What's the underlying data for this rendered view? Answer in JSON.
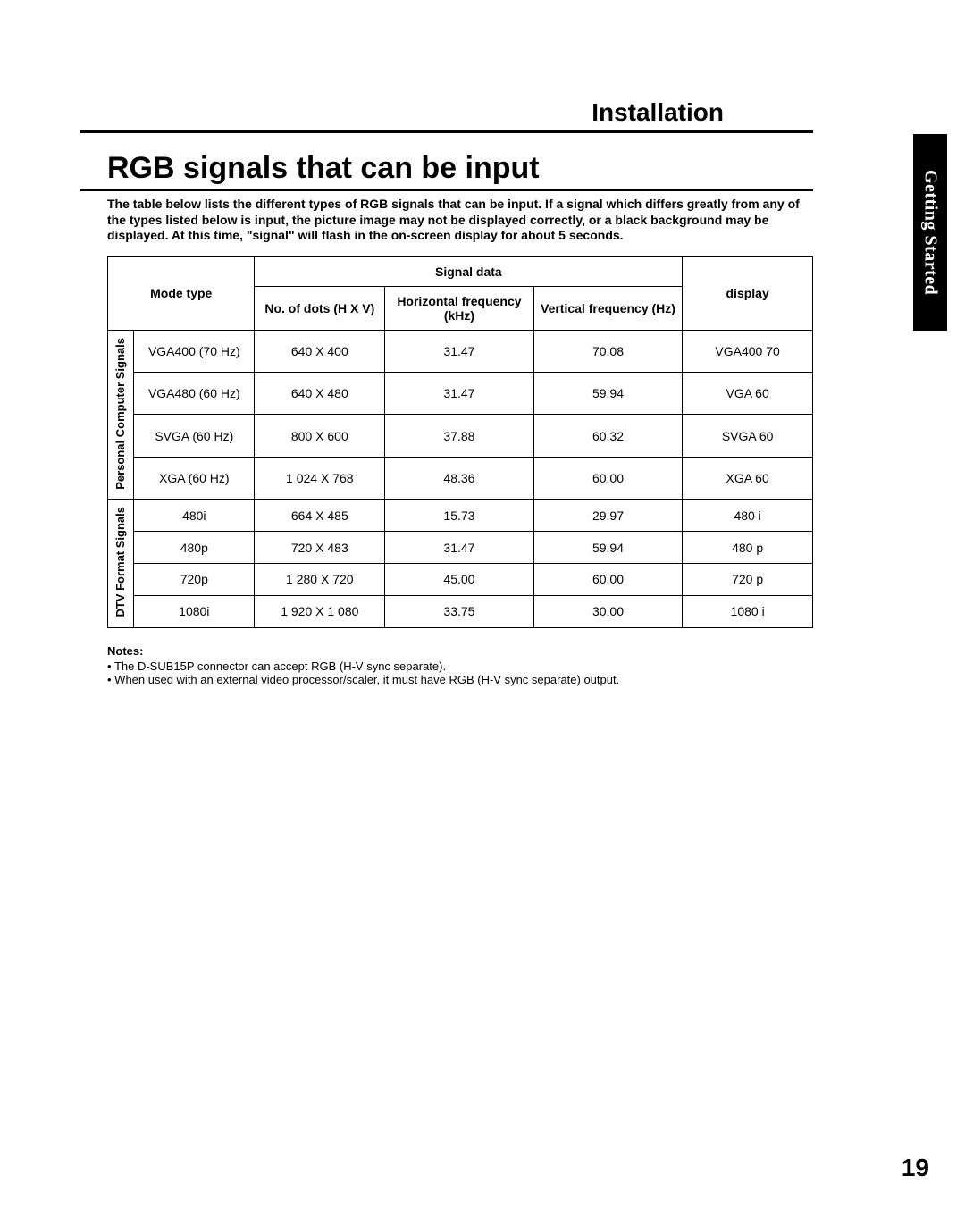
{
  "header": {
    "installation": "Installation",
    "section_title": "RGB signals that can be input",
    "side_tab": "Getting Started"
  },
  "intro": "The table below lists the different types of RGB signals that can be input.\nIf a signal which differs greatly from any of the types listed below is input, the picture image may not be displayed correctly, or a black background may be displayed. At this time, \"signal\" will flash in the on-screen display for about 5 seconds.",
  "table": {
    "headers": {
      "mode_type": "Mode type",
      "signal_data": "Signal data",
      "dots": "No. of dots\n(H X V)",
      "h_freq": "Horizontal frequency (kHz)",
      "v_freq": "Vertical frequency (Hz)",
      "display": "display"
    },
    "groups": [
      {
        "label": "Personal Computer\nSignals",
        "rows": [
          {
            "mode": "VGA400 (70 Hz)",
            "dots": "640 X 400",
            "hf": "31.47",
            "vf": "70.08",
            "display": "VGA400 70"
          },
          {
            "mode": "VGA480 (60 Hz)",
            "dots": "640 X 480",
            "hf": "31.47",
            "vf": "59.94",
            "display": "VGA 60"
          },
          {
            "mode": "SVGA (60 Hz)",
            "dots": "800 X 600",
            "hf": "37.88",
            "vf": "60.32",
            "display": "SVGA 60"
          },
          {
            "mode": "XGA (60 Hz)",
            "dots": "1 024 X 768",
            "hf": "48.36",
            "vf": "60.00",
            "display": "XGA 60"
          }
        ]
      },
      {
        "label": "DTV Format Signals",
        "rows": [
          {
            "mode": "480i",
            "dots": "664 X 485",
            "hf": "15.73",
            "vf": "29.97",
            "display": "480 i"
          },
          {
            "mode": "480p",
            "dots": "720 X 483",
            "hf": "31.47",
            "vf": "59.94",
            "display": "480 p"
          },
          {
            "mode": "720p",
            "dots": "1 280 X 720",
            "hf": "45.00",
            "vf": "60.00",
            "display": "720 p"
          },
          {
            "mode": "1080i",
            "dots": "1 920 X 1 080",
            "hf": "33.75",
            "vf": "30.00",
            "display": "1080 i"
          }
        ]
      }
    ]
  },
  "notes": {
    "label": "Notes:",
    "items": [
      "The D-SUB15P connector can accept RGB (H-V sync separate).",
      "When used with an external video processor/scaler, it must have RGB (H-V sync separate) output."
    ]
  },
  "page_number": "19"
}
